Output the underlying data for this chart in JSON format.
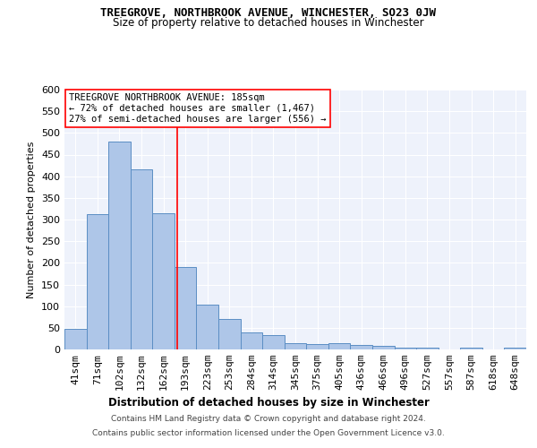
{
  "title": "TREEGROVE, NORTHBROOK AVENUE, WINCHESTER, SO23 0JW",
  "subtitle": "Size of property relative to detached houses in Winchester",
  "xlabel": "Distribution of detached houses by size in Winchester",
  "ylabel": "Number of detached properties",
  "categories": [
    "41sqm",
    "71sqm",
    "102sqm",
    "132sqm",
    "162sqm",
    "193sqm",
    "223sqm",
    "253sqm",
    "284sqm",
    "314sqm",
    "345sqm",
    "375sqm",
    "405sqm",
    "436sqm",
    "466sqm",
    "496sqm",
    "527sqm",
    "557sqm",
    "587sqm",
    "618sqm",
    "648sqm"
  ],
  "values": [
    47,
    312,
    480,
    415,
    315,
    190,
    103,
    70,
    40,
    33,
    15,
    12,
    15,
    10,
    8,
    5,
    5,
    0,
    5,
    0,
    5
  ],
  "bar_color": "#aec6e8",
  "bar_edge_color": "#5b8ec4",
  "background_color": "#eef2fb",
  "grid_color": "#ffffff",
  "red_line_x": 4.645,
  "annotation_text": "TREEGROVE NORTHBROOK AVENUE: 185sqm\n← 72% of detached houses are smaller (1,467)\n27% of semi-detached houses are larger (556) →",
  "footer_line1": "Contains HM Land Registry data © Crown copyright and database right 2024.",
  "footer_line2": "Contains public sector information licensed under the Open Government Licence v3.0.",
  "ylim": [
    0,
    600
  ],
  "yticks": [
    0,
    50,
    100,
    150,
    200,
    250,
    300,
    350,
    400,
    450,
    500,
    550,
    600
  ]
}
